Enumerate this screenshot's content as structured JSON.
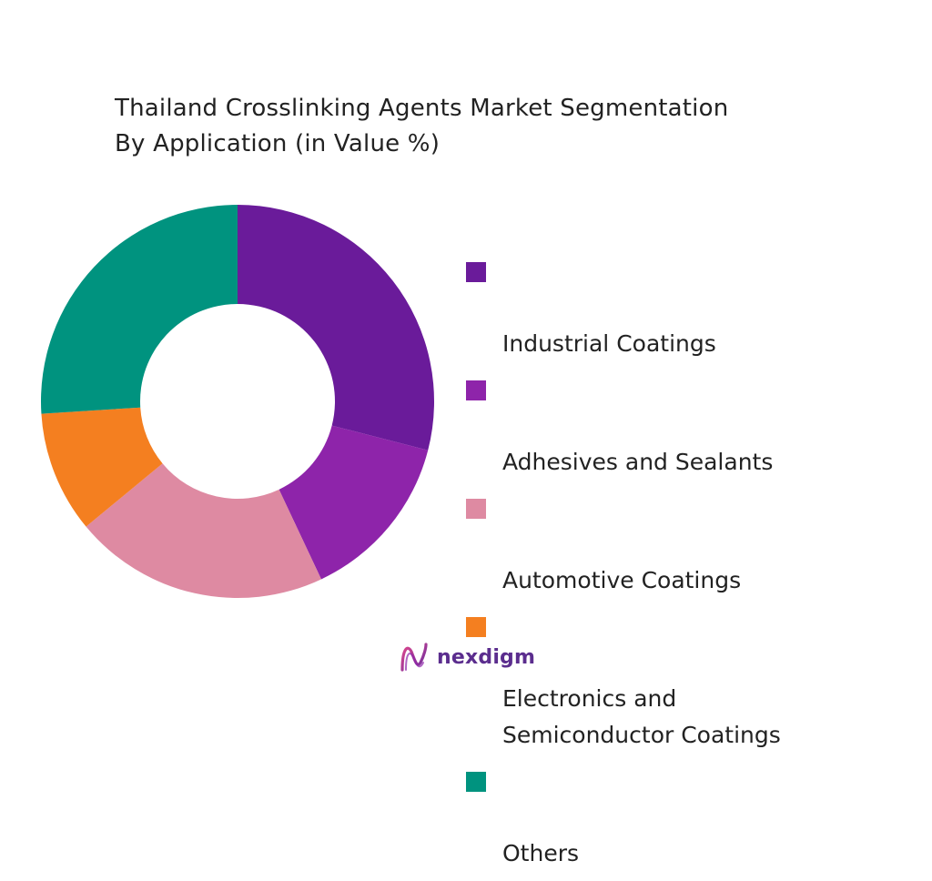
{
  "chart_data": {
    "type": "pie",
    "title_lines": [
      "Thailand Crosslinking Agents Market Segmentation",
      "By Application (in Value %)"
    ],
    "categories": [
      "Industrial Coatings",
      "Adhesives and Sealants",
      "Automotive Coatings",
      "Electronics and\nSemiconductor Coatings",
      "Others"
    ],
    "values": [
      29,
      14,
      21,
      10,
      26
    ],
    "colors": [
      "#6a1b9a",
      "#8e24aa",
      "#de8aa2",
      "#f47f20",
      "#00937f"
    ],
    "legend_position": "right"
  },
  "logo": {
    "text": "nexdigm",
    "color": "#5b2d8e"
  }
}
